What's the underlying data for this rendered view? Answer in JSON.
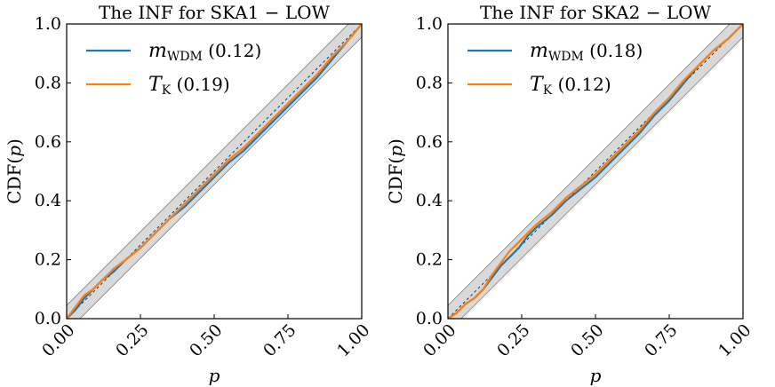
{
  "chart_data": [
    {
      "type": "line",
      "title": "The INF for SKA1 − LOW",
      "xlabel": "p",
      "ylabel": "CDF(p)",
      "xlim": [
        0,
        1
      ],
      "ylim": [
        0,
        1
      ],
      "xticks": [
        "0.00",
        "0.25",
        "0.50",
        "0.75",
        "1.00"
      ],
      "yticks": [
        "0.0",
        "0.2",
        "0.4",
        "0.6",
        "0.8",
        "1.0"
      ],
      "band": "gray confidence band around diagonal",
      "reference_line": "dashed diagonal y = x",
      "legend_position": "top-left",
      "series": [
        {
          "name": "m_WDM (0.12)",
          "label_main": "m",
          "label_sub": "WDM",
          "label_tail": " (0.12)",
          "color": "#1f77b4",
          "x": [
            0,
            0.03,
            0.06,
            0.09,
            0.12,
            0.16,
            0.2,
            0.25,
            0.3,
            0.35,
            0.4,
            0.45,
            0.5,
            0.55,
            0.6,
            0.65,
            0.7,
            0.75,
            0.8,
            0.85,
            0.9,
            0.95,
            1.0
          ],
          "y": [
            0,
            0.03,
            0.07,
            0.1,
            0.13,
            0.16,
            0.2,
            0.24,
            0.29,
            0.34,
            0.38,
            0.43,
            0.48,
            0.53,
            0.57,
            0.62,
            0.67,
            0.72,
            0.77,
            0.82,
            0.88,
            0.94,
            1.0
          ]
        },
        {
          "name": "T_K (0.19)",
          "label_main": "T",
          "label_sub": "K",
          "label_tail": " (0.19)",
          "color": "#ff7f0e",
          "x": [
            0,
            0.03,
            0.06,
            0.09,
            0.12,
            0.16,
            0.2,
            0.25,
            0.3,
            0.35,
            0.4,
            0.45,
            0.5,
            0.55,
            0.6,
            0.65,
            0.7,
            0.75,
            0.8,
            0.85,
            0.9,
            0.95,
            1.0
          ],
          "y": [
            0,
            0.04,
            0.08,
            0.1,
            0.13,
            0.17,
            0.2,
            0.24,
            0.29,
            0.34,
            0.39,
            0.44,
            0.49,
            0.54,
            0.58,
            0.63,
            0.68,
            0.73,
            0.78,
            0.83,
            0.89,
            0.94,
            1.0
          ]
        }
      ]
    },
    {
      "type": "line",
      "title": "The INF for SKA2 − LOW",
      "xlabel": "p",
      "ylabel": "CDF(p)",
      "xlim": [
        0,
        1
      ],
      "ylim": [
        0,
        1
      ],
      "xticks": [
        "0.00",
        "0.25",
        "0.50",
        "0.75",
        "1.00"
      ],
      "yticks": [
        "0.0",
        "0.2",
        "0.4",
        "0.6",
        "0.8",
        "1.0"
      ],
      "band": "gray confidence band around diagonal",
      "reference_line": "dashed diagonal y = x",
      "legend_position": "top-left",
      "series": [
        {
          "name": "m_WDM (0.18)",
          "label_main": "m",
          "label_sub": "WDM",
          "label_tail": " (0.18)",
          "color": "#1f77b4",
          "x": [
            0,
            0.03,
            0.06,
            0.09,
            0.12,
            0.15,
            0.18,
            0.21,
            0.24,
            0.27,
            0.3,
            0.35,
            0.4,
            0.45,
            0.5,
            0.55,
            0.6,
            0.65,
            0.7,
            0.75,
            0.8,
            0.85,
            0.9,
            0.95,
            1.0
          ],
          "y": [
            0,
            0.02,
            0.05,
            0.07,
            0.1,
            0.14,
            0.18,
            0.21,
            0.24,
            0.28,
            0.31,
            0.35,
            0.4,
            0.44,
            0.48,
            0.53,
            0.58,
            0.63,
            0.69,
            0.74,
            0.8,
            0.86,
            0.91,
            0.95,
            1.0
          ]
        },
        {
          "name": "T_K (0.12)",
          "label_main": "T",
          "label_sub": "K",
          "label_tail": " (0.12)",
          "color": "#ff7f0e",
          "x": [
            0,
            0.03,
            0.06,
            0.09,
            0.12,
            0.15,
            0.18,
            0.21,
            0.24,
            0.27,
            0.3,
            0.35,
            0.4,
            0.45,
            0.5,
            0.55,
            0.6,
            0.65,
            0.7,
            0.75,
            0.8,
            0.85,
            0.9,
            0.95,
            1.0
          ],
          "y": [
            0,
            0.02,
            0.05,
            0.07,
            0.1,
            0.15,
            0.19,
            0.23,
            0.26,
            0.29,
            0.32,
            0.36,
            0.41,
            0.45,
            0.49,
            0.54,
            0.59,
            0.64,
            0.7,
            0.75,
            0.81,
            0.86,
            0.91,
            0.95,
            1.0
          ]
        }
      ]
    }
  ]
}
